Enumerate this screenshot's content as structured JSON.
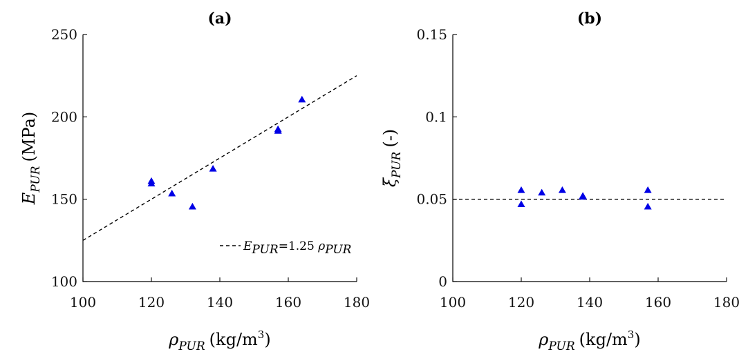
{
  "chart_data": [
    {
      "type": "scatter",
      "title": "(a)",
      "x": [
        120,
        120,
        126,
        132,
        138,
        157,
        157,
        164
      ],
      "y": [
        161,
        159.5,
        153.5,
        145.5,
        168.5,
        192.5,
        191.5,
        210.5
      ],
      "xlim": [
        100,
        180
      ],
      "ylim": [
        100,
        250
      ],
      "xticks": [
        100,
        120,
        140,
        160,
        180
      ],
      "yticks": [
        100,
        150,
        200,
        250
      ],
      "xticklabels": [
        "100",
        "120",
        "140",
        "160",
        "180"
      ],
      "yticklabels": [
        "100",
        "150",
        "200",
        "250"
      ],
      "xlabel": {
        "main": "ρ",
        "sub": "PUR",
        "unit": "(kg/m",
        "sup": "3",
        "close": ")"
      },
      "ylabel": {
        "main": "E",
        "sub": "PUR",
        "unit": "(MPa)"
      },
      "fit": {
        "slope": 1.25,
        "intercept": 0
      },
      "legend": {
        "lhs": "E",
        "lhs_sub": "PUR",
        "eq": "=1.25 ",
        "rhs": "ρ",
        "rhs_sub": "PUR",
        "position": "bottom-right"
      }
    },
    {
      "type": "scatter",
      "title": "(b)",
      "x": [
        120,
        120,
        126,
        132,
        138,
        138,
        157,
        157
      ],
      "y": [
        0.0555,
        0.047,
        0.054,
        0.0555,
        0.052,
        0.0515,
        0.0555,
        0.0455
      ],
      "xlim": [
        100,
        180
      ],
      "ylim": [
        0,
        0.15
      ],
      "xticks": [
        100,
        120,
        140,
        160,
        180
      ],
      "yticks": [
        0,
        0.05,
        0.1,
        0.15
      ],
      "xticklabels": [
        "100",
        "120",
        "140",
        "160",
        "180"
      ],
      "yticklabels": [
        "0",
        "0.05",
        "0.1",
        "0.15"
      ],
      "xlabel": {
        "main": "ρ",
        "sub": "PUR",
        "unit": "(kg/m",
        "sup": "3",
        "close": ")"
      },
      "ylabel": {
        "main": "ξ",
        "sub": "PUR",
        "unit": "(-)"
      },
      "fit": {
        "constant": 0.05
      }
    }
  ]
}
